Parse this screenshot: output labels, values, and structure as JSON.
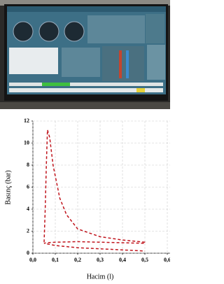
{
  "chart_data": {
    "type": "line",
    "xlabel": "Hacim (l)",
    "ylabel": "Basınç (bar)",
    "x": [
      0.05,
      0.055,
      0.06,
      0.065,
      0.075,
      0.09,
      0.12,
      0.15,
      0.2,
      0.3,
      0.4,
      0.5,
      0.5,
      0.4,
      0.3,
      0.2,
      0.1,
      0.06,
      0.05,
      0.1,
      0.2,
      0.3,
      0.4,
      0.5
    ],
    "values": [
      1.0,
      4,
      8,
      11.2,
      10.5,
      8,
      5,
      3.5,
      2.2,
      1.5,
      1.2,
      1.0,
      0.9,
      0.95,
      1.0,
      1.05,
      1.0,
      0.95,
      0.9,
      0.7,
      0.5,
      0.4,
      0.3,
      0.2
    ],
    "color": "#c0141c",
    "xlim": [
      0,
      0.6
    ],
    "ylim": [
      0,
      12
    ],
    "xticks": [
      {
        "value": 0,
        "label": "0,0"
      },
      {
        "value": 0.1,
        "label": "0,1"
      },
      {
        "value": 0.2,
        "label": "0,2"
      },
      {
        "value": 0.3,
        "label": "0,3"
      },
      {
        "value": 0.4,
        "label": "0,4"
      },
      {
        "value": 0.5,
        "label": "0,5"
      },
      {
        "value": 0.6,
        "label": "0,6"
      }
    ],
    "yticks": [
      0,
      2,
      4,
      6,
      8,
      10,
      12
    ],
    "grid": true
  }
}
